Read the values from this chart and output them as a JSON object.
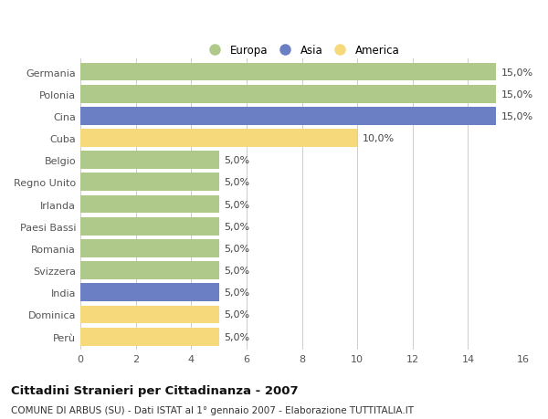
{
  "categories": [
    "Germania",
    "Polonia",
    "Cina",
    "Cuba",
    "Belgio",
    "Regno Unito",
    "Irlanda",
    "Paesi Bassi",
    "Romania",
    "Svizzera",
    "India",
    "Dominica",
    "Perù"
  ],
  "values": [
    15.0,
    15.0,
    15.0,
    10.0,
    5.0,
    5.0,
    5.0,
    5.0,
    5.0,
    5.0,
    5.0,
    5.0,
    5.0
  ],
  "colors": [
    "#aec98a",
    "#aec98a",
    "#6b80c4",
    "#f5d97a",
    "#aec98a",
    "#aec98a",
    "#aec98a",
    "#aec98a",
    "#aec98a",
    "#aec98a",
    "#6b80c4",
    "#f5d97a",
    "#f5d97a"
  ],
  "bar_labels": [
    "15,0%",
    "15,0%",
    "15,0%",
    "10,0%",
    "5,0%",
    "5,0%",
    "5,0%",
    "5,0%",
    "5,0%",
    "5,0%",
    "5,0%",
    "5,0%",
    "5,0%"
  ],
  "legend_labels": [
    "Europa",
    "Asia",
    "America"
  ],
  "legend_colors": [
    "#aec98a",
    "#6b80c4",
    "#f5d97a"
  ],
  "xlim": [
    0,
    16
  ],
  "xticks": [
    0,
    2,
    4,
    6,
    8,
    10,
    12,
    14,
    16
  ],
  "title": "Cittadini Stranieri per Cittadinanza - 2007",
  "subtitle": "COMUNE DI ARBUS (SU) - Dati ISTAT al 1° gennaio 2007 - Elaborazione TUTTITALIA.IT",
  "bg_color": "#ffffff",
  "grid_color": "#cccccc",
  "bar_height": 0.82,
  "label_fontsize": 8.0,
  "tick_fontsize": 8.0,
  "title_fontsize": 9.5,
  "subtitle_fontsize": 7.5
}
